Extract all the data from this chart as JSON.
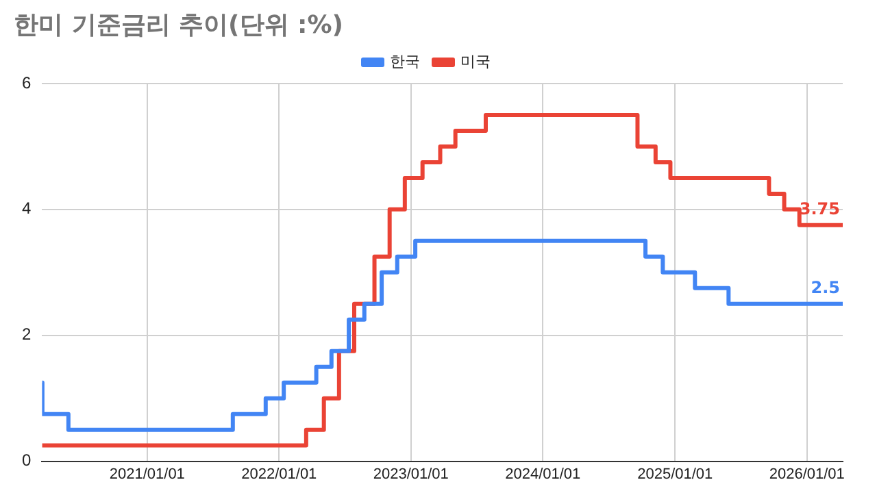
{
  "chart_data": {
    "type": "step",
    "title": "한미 기준금리 추이(단위 :%)",
    "legend": "top",
    "grid": true,
    "marker": "none",
    "line_style": "solid",
    "xlim": [
      "2020-03-16",
      "2026-04-10"
    ],
    "xticks": [
      {
        "value": "2021-01-01",
        "label": "2021/01/01"
      },
      {
        "value": "2022-01-01",
        "label": "2022/01/01"
      },
      {
        "value": "2023-01-01",
        "label": "2023/01/01"
      },
      {
        "value": "2024-01-01",
        "label": "2024/01/01"
      },
      {
        "value": "2025-01-01",
        "label": "2025/01/01"
      },
      {
        "value": "2026-01-01",
        "label": "2026/01/01"
      }
    ],
    "ylim": [
      0,
      6
    ],
    "yticks": [
      0,
      2,
      4,
      6
    ],
    "series": [
      {
        "name": "한국",
        "color": "#4285f4",
        "x": [
          "2020-03-16",
          "2020-03-17",
          "2020-05-28",
          "2021-08-26",
          "2021-11-25",
          "2022-01-14",
          "2022-04-14",
          "2022-05-26",
          "2022-07-13",
          "2022-08-25",
          "2022-10-12",
          "2022-11-24",
          "2023-01-13",
          "2024-10-11",
          "2024-11-28",
          "2025-02-25",
          "2025-05-29",
          "2026-04-10"
        ],
        "values": [
          1.25,
          0.75,
          0.5,
          0.75,
          1.0,
          1.25,
          1.5,
          1.75,
          2.25,
          2.5,
          3.0,
          3.25,
          3.5,
          3.25,
          3.0,
          2.75,
          2.5,
          2.5
        ],
        "value_labels": [
          null,
          null,
          null,
          null,
          null,
          null,
          null,
          null,
          null,
          null,
          null,
          null,
          null,
          null,
          null,
          null,
          null,
          "2.5"
        ]
      },
      {
        "name": "미국",
        "color": "#ea4335",
        "x": [
          "2020-03-16",
          "2022-03-17",
          "2022-05-05",
          "2022-06-16",
          "2022-07-28",
          "2022-09-22",
          "2022-11-03",
          "2022-12-15",
          "2023-02-02",
          "2023-03-23",
          "2023-05-04",
          "2023-07-27",
          "2024-09-19",
          "2024-11-08",
          "2024-12-19",
          "2025-09-18",
          "2025-10-30",
          "2025-12-11",
          "2026-04-10"
        ],
        "values": [
          0.25,
          0.5,
          1.0,
          1.75,
          2.5,
          3.25,
          4.0,
          4.5,
          4.75,
          5.0,
          5.25,
          5.5,
          5.0,
          4.75,
          4.5,
          4.25,
          4.0,
          3.75,
          3.75
        ],
        "value_labels": [
          null,
          null,
          null,
          null,
          null,
          null,
          null,
          null,
          null,
          null,
          null,
          null,
          null,
          null,
          null,
          null,
          null,
          null,
          "3.75"
        ]
      }
    ]
  }
}
